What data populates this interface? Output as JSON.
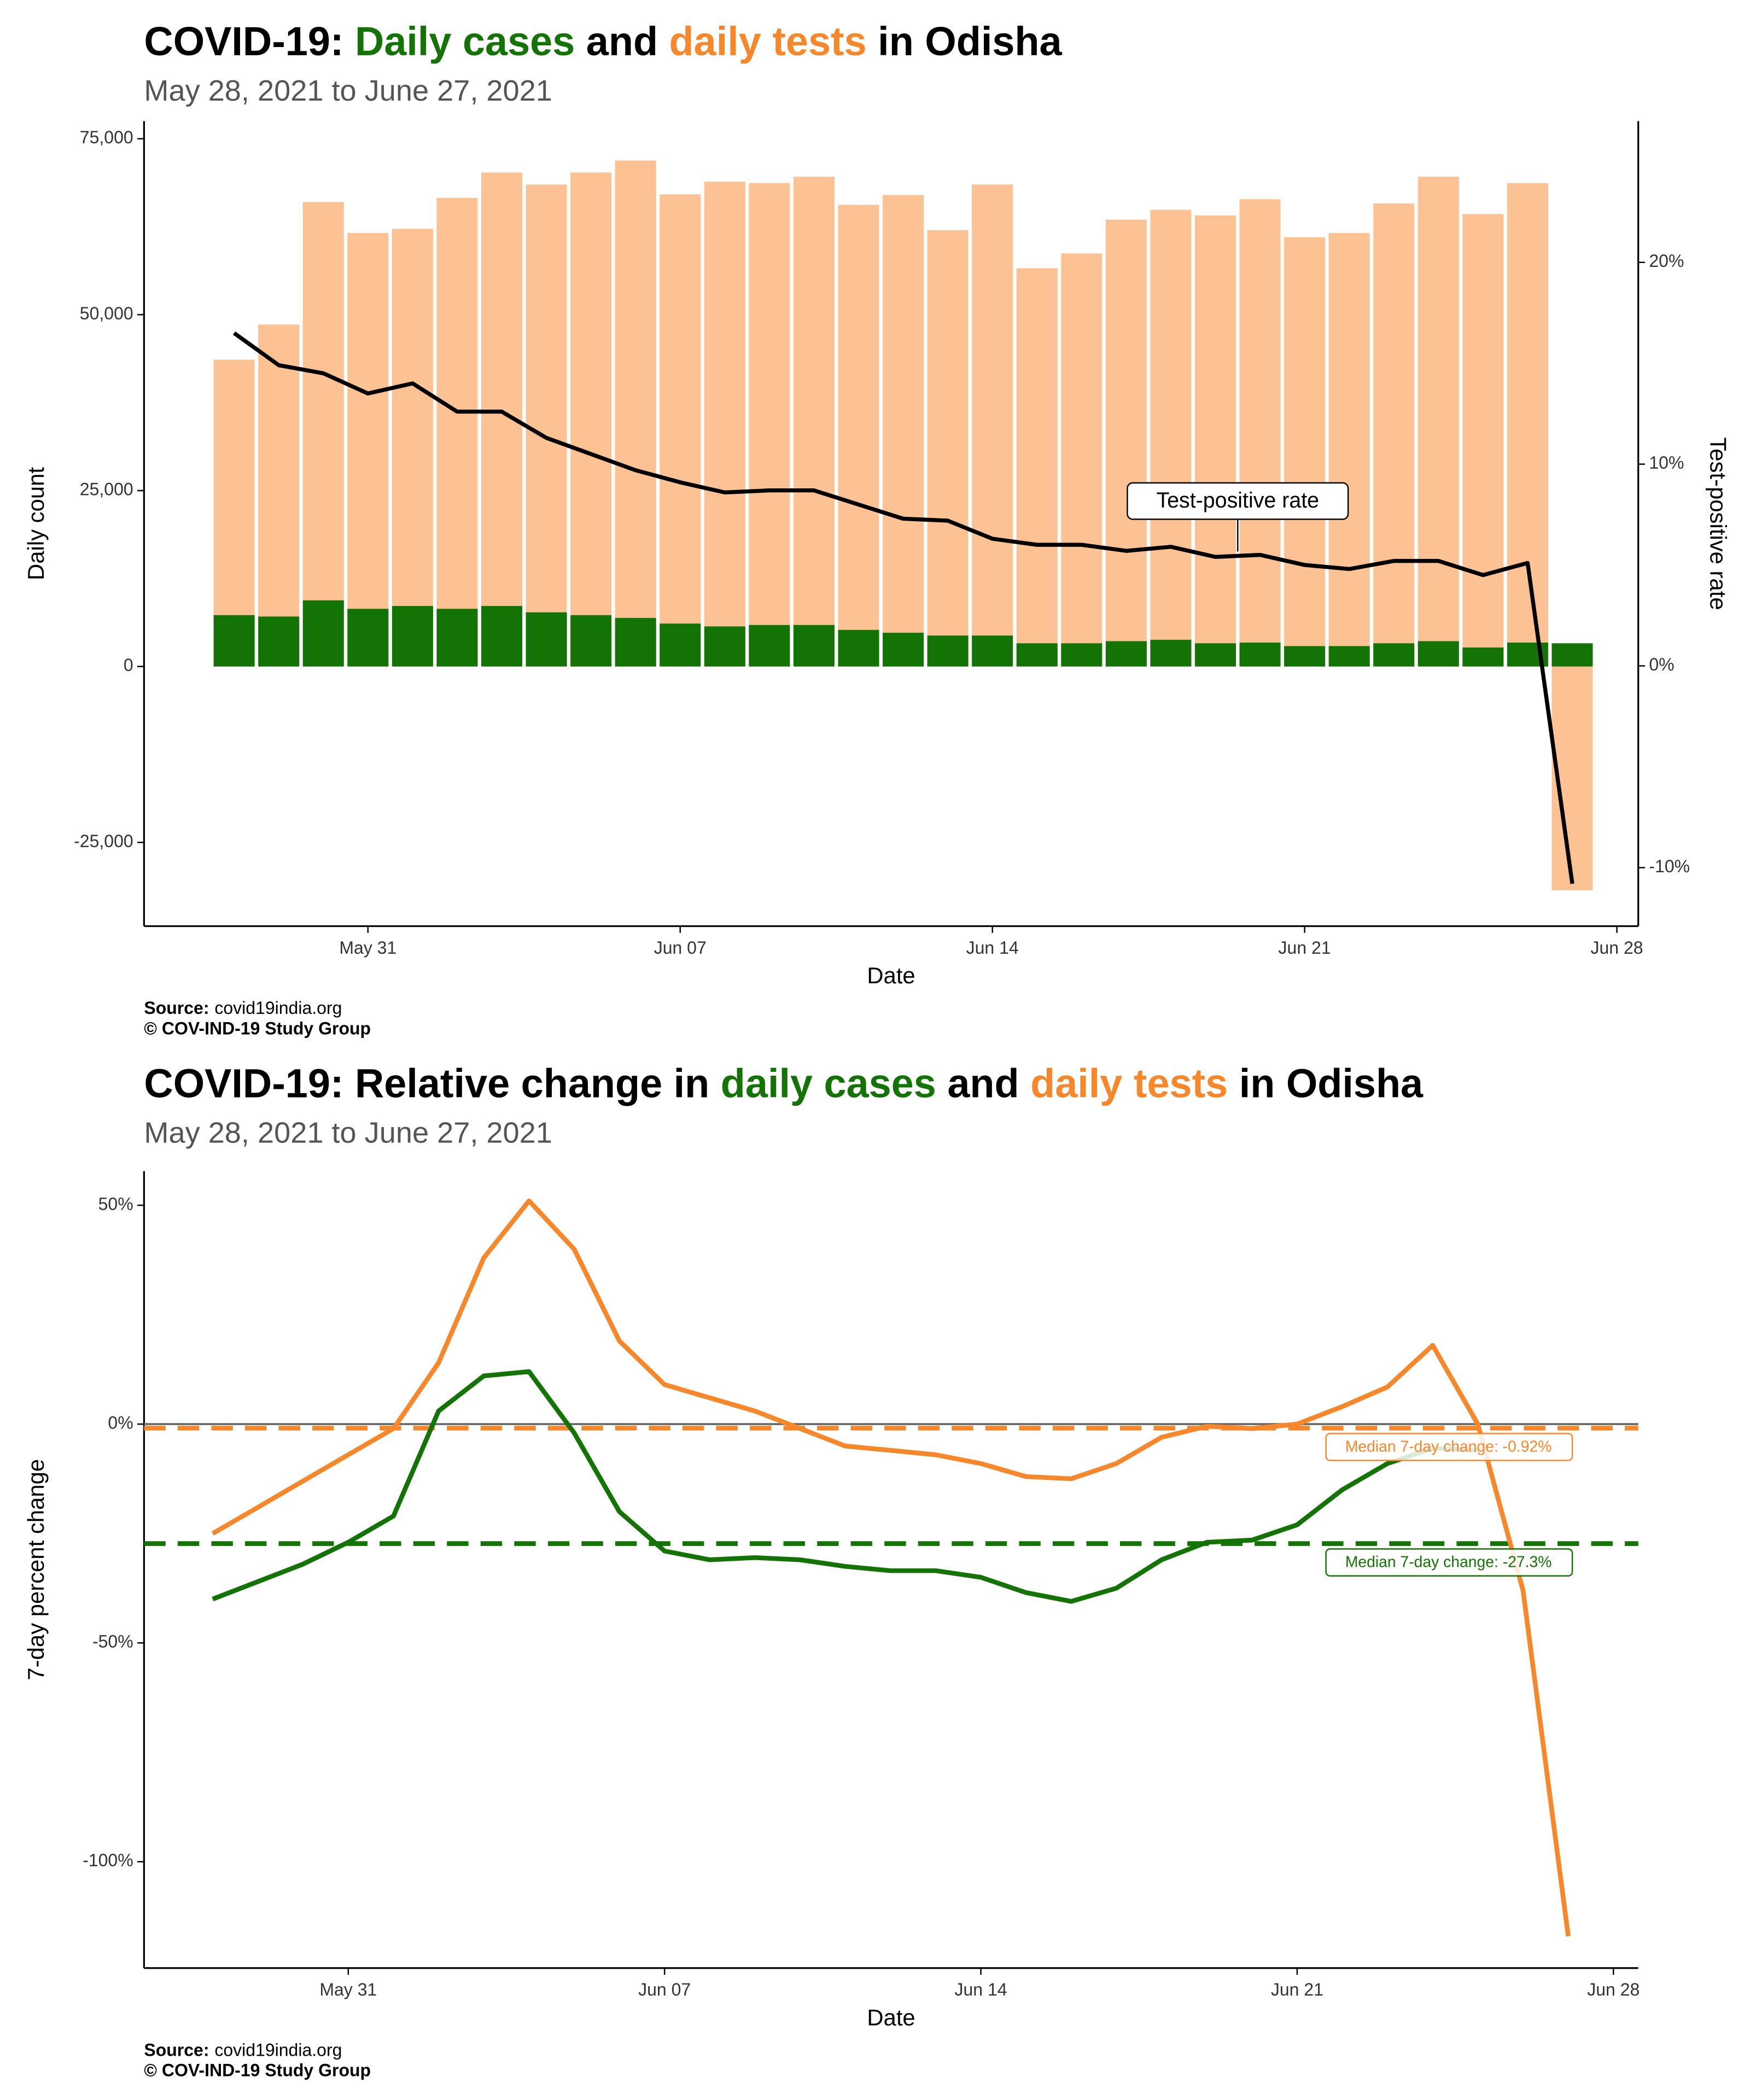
{
  "chart_data": [
    {
      "type": "bar",
      "title": [
        {
          "text": "COVID-19: ",
          "color": "#000000"
        },
        {
          "text": "Daily cases",
          "color": "#137305"
        },
        {
          "text": " and ",
          "color": "#000000"
        },
        {
          "text": "daily tests",
          "color": "#f6872b"
        },
        {
          "text": " in Odisha",
          "color": "#000000"
        }
      ],
      "subtitle": "May 28, 2021 to June 27, 2021",
      "x_label": "Date",
      "y_label": "Daily count",
      "y2_label": "Test-positive rate",
      "x": [
        "May 28",
        "May 29",
        "May 30",
        "May 31",
        "Jun 01",
        "Jun 02",
        "Jun 03",
        "Jun 04",
        "Jun 05",
        "Jun 06",
        "Jun 07",
        "Jun 08",
        "Jun 09",
        "Jun 10",
        "Jun 11",
        "Jun 12",
        "Jun 13",
        "Jun 14",
        "Jun 15",
        "Jun 16",
        "Jun 17",
        "Jun 18",
        "Jun 19",
        "Jun 20",
        "Jun 21",
        "Jun 22",
        "Jun 23",
        "Jun 24",
        "Jun 25",
        "Jun 26",
        "Jun 27"
      ],
      "xticks": [
        "May 31",
        "Jun 07",
        "Jun 14",
        "Jun 21",
        "Jun 28"
      ],
      "ylim": [
        -36900,
        77500
      ],
      "yticks": [
        {
          "value": -25000,
          "label": "-25,000"
        },
        0,
        {
          "value": 25000,
          "label": "25,000"
        },
        {
          "value": 50000,
          "label": "50,000"
        },
        {
          "value": 75000,
          "label": "75,000"
        }
      ],
      "y2lim": [
        -12.9,
        27
      ],
      "y2ticks": [
        {
          "value": -10,
          "label": "-10%"
        },
        {
          "value": 0,
          "label": "0%"
        },
        {
          "value": 10,
          "label": "10%"
        },
        {
          "value": 20,
          "label": "20%"
        }
      ],
      "series": [
        {
          "type": "bar",
          "color": "#fcc293",
          "values": [
            43600,
            48600,
            66000,
            61600,
            62200,
            66600,
            70200,
            68500,
            70200,
            71900,
            67100,
            68900,
            68700,
            69600,
            65600,
            67000,
            62000,
            68500,
            56600,
            58700,
            63500,
            64900,
            64100,
            66400,
            61000,
            61600,
            65800,
            69600,
            64300,
            68700,
            -31800
          ]
        },
        {
          "type": "bar",
          "color": "#137305",
          "values": [
            7300,
            7100,
            9400,
            8200,
            8600,
            8200,
            8600,
            7700,
            7300,
            6900,
            6100,
            5700,
            5900,
            5900,
            5200,
            4800,
            4400,
            4400,
            3300,
            3300,
            3600,
            3800,
            3300,
            3400,
            2900,
            2900,
            3300,
            3600,
            2700,
            3400,
            3300
          ]
        },
        {
          "type": "line",
          "name": "Test-positive rate",
          "axis": "y2",
          "color": "#000000",
          "values": [
            16.5,
            14.9,
            14.5,
            13.5,
            14.0,
            12.6,
            12.6,
            11.3,
            10.5,
            9.7,
            9.1,
            8.6,
            8.7,
            8.7,
            8.0,
            7.3,
            7.2,
            6.3,
            6.0,
            6.0,
            5.7,
            5.9,
            5.4,
            5.5,
            5.0,
            4.8,
            5.2,
            5.2,
            4.5,
            5.1,
            -10.8
          ]
        }
      ],
      "source_label": "Source:",
      "source": "covid19india.org",
      "credit": "© COV-IND-19 Study Group"
    },
    {
      "type": "line",
      "title": [
        {
          "text": "COVID-19: Relative change in ",
          "color": "#000000"
        },
        {
          "text": "daily cases",
          "color": "#137305"
        },
        {
          "text": " and ",
          "color": "#000000"
        },
        {
          "text": "daily tests",
          "color": "#f6872b"
        },
        {
          "text": " in Odisha",
          "color": "#000000"
        }
      ],
      "subtitle": "May 28, 2021 to June 27, 2021",
      "x_label": "Date",
      "y_label": "7-day percent change",
      "x": [
        "May 28",
        "May 29",
        "May 30",
        "May 31",
        "Jun 01",
        "Jun 02",
        "Jun 03",
        "Jun 04",
        "Jun 05",
        "Jun 06",
        "Jun 07",
        "Jun 08",
        "Jun 09",
        "Jun 10",
        "Jun 11",
        "Jun 12",
        "Jun 13",
        "Jun 14",
        "Jun 15",
        "Jun 16",
        "Jun 17",
        "Jun 18",
        "Jun 19",
        "Jun 20",
        "Jun 21",
        "Jun 22",
        "Jun 23",
        "Jun 24",
        "Jun 25",
        "Jun 26",
        "Jun 27"
      ],
      "xticks": [
        "May 31",
        "Jun 07",
        "Jun 14",
        "Jun 21",
        "Jun 28"
      ],
      "ylim": [
        -124.3,
        57.8
      ],
      "yticks": [
        {
          "value": -100,
          "label": "-100%"
        },
        {
          "value": -50,
          "label": "-50%"
        },
        {
          "value": 0,
          "label": "0%"
        },
        {
          "value": 50,
          "label": "50%"
        }
      ],
      "series": [
        {
          "color": "#f6872b",
          "values": [
            -25,
            -19,
            -13,
            -7,
            -1,
            14,
            38,
            51,
            40,
            19,
            9,
            6,
            3,
            -1,
            -5,
            -6,
            -7,
            -9,
            -12,
            -12.5,
            -9,
            -3,
            -0.5,
            -1,
            0,
            4,
            8.5,
            18,
            0,
            -38,
            -117
          ]
        },
        {
          "color": "#137305",
          "values": [
            -40,
            -36,
            -32,
            -27,
            -21,
            3,
            11,
            12,
            -2,
            -20,
            -29,
            -31,
            -30.5,
            -31,
            -32.5,
            -33.5,
            -33.5,
            -35,
            -38.5,
            -40.5,
            -37.5,
            -31,
            -27,
            -26.5,
            -23,
            -15,
            -9,
            -5.5,
            -6,
            null,
            null
          ]
        }
      ],
      "reference_lines": [
        {
          "value": -0.92,
          "label": "Median 7-day change: -0.92%",
          "color": "#f6872b"
        },
        {
          "value": -27.3,
          "label": "Median 7-day change: -27.3%",
          "color": "#137305"
        }
      ],
      "source_label": "Source:",
      "source": "covid19india.org",
      "credit": "© COV-IND-19 Study Group"
    }
  ]
}
